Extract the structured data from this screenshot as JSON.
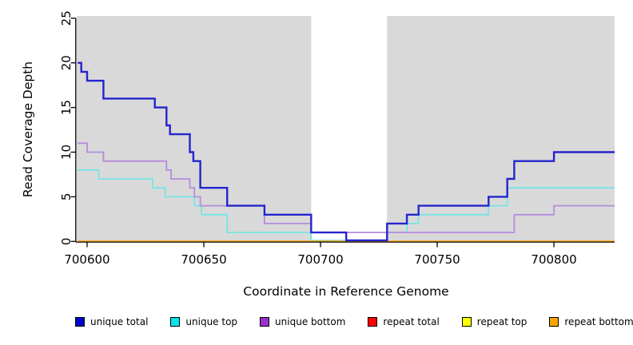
{
  "chart_data": {
    "type": "line",
    "step": true,
    "title": "",
    "xlabel": "Coordinate in Reference Genome",
    "ylabel": "Read Coverage Depth",
    "xlim": [
      700596,
      700826
    ],
    "ylim": [
      0,
      25
    ],
    "xticks": [
      700600,
      700650,
      700700,
      700750,
      700800
    ],
    "yticks": [
      0,
      5,
      10,
      15,
      20,
      25
    ],
    "grid": "off",
    "plot_background": "#D9D9D9",
    "page_background": "#FFFFFF",
    "uncovered_band": {
      "from": 700696,
      "to": 700728.5,
      "color": "#FFFFFF"
    },
    "legend_position": "bottom",
    "legend_order": [
      "unique total",
      "unique top",
      "unique bottom",
      "repeat total",
      "repeat top",
      "repeat bottom"
    ],
    "series": [
      {
        "name": "repeat total",
        "color": "#FF0000",
        "legend_color": "#FF0000",
        "steps": [
          [
            700596,
            0
          ]
        ]
      },
      {
        "name": "repeat top",
        "color": "#FFFF00",
        "legend_color": "#FFFF00",
        "steps": [
          [
            700596,
            0
          ]
        ]
      },
      {
        "name": "unique top",
        "color": "#74E6E2",
        "legend_color": "#00E5EE",
        "steps": [
          [
            700596,
            8
          ],
          [
            700605,
            7
          ],
          [
            700628,
            6
          ],
          [
            700633.5,
            5
          ],
          [
            700646,
            4
          ],
          [
            700649,
            3
          ],
          [
            700660,
            1
          ],
          [
            700696,
            0
          ],
          [
            700728.5,
            1
          ],
          [
            700737,
            2
          ],
          [
            700742,
            3
          ],
          [
            700772,
            4
          ],
          [
            700780,
            6
          ]
        ]
      },
      {
        "name": "unique bottom",
        "color": "#B48CDC",
        "legend_color": "#9932CC",
        "steps": [
          [
            700596,
            11
          ],
          [
            700600,
            10
          ],
          [
            700607,
            9
          ],
          [
            700634,
            8
          ],
          [
            700636,
            7
          ],
          [
            700644,
            6
          ],
          [
            700646,
            5
          ],
          [
            700648.5,
            4
          ],
          [
            700676,
            2
          ],
          [
            700696,
            1
          ],
          [
            700783,
            3
          ],
          [
            700800,
            4
          ]
        ]
      },
      {
        "name": "repeat bottom",
        "color": "#FFA500",
        "legend_color": "#FFA500",
        "steps": [
          [
            700596,
            0
          ]
        ]
      },
      {
        "name": "unique total",
        "color": "#2424CE",
        "legend_color": "#0000CD",
        "steps": [
          [
            700596,
            20
          ],
          [
            700597.5,
            19
          ],
          [
            700600,
            18
          ],
          [
            700607,
            16
          ],
          [
            700629,
            15
          ],
          [
            700634,
            13
          ],
          [
            700635.5,
            12
          ],
          [
            700644,
            10
          ],
          [
            700645.5,
            9
          ],
          [
            700648.5,
            6
          ],
          [
            700660,
            4
          ],
          [
            700676,
            3
          ],
          [
            700696,
            1
          ],
          [
            700711,
            0
          ],
          [
            700728.5,
            2
          ],
          [
            700737,
            3
          ],
          [
            700742,
            4
          ],
          [
            700772,
            5
          ],
          [
            700780,
            7
          ],
          [
            700783,
            9
          ],
          [
            700800,
            10
          ]
        ]
      }
    ]
  }
}
